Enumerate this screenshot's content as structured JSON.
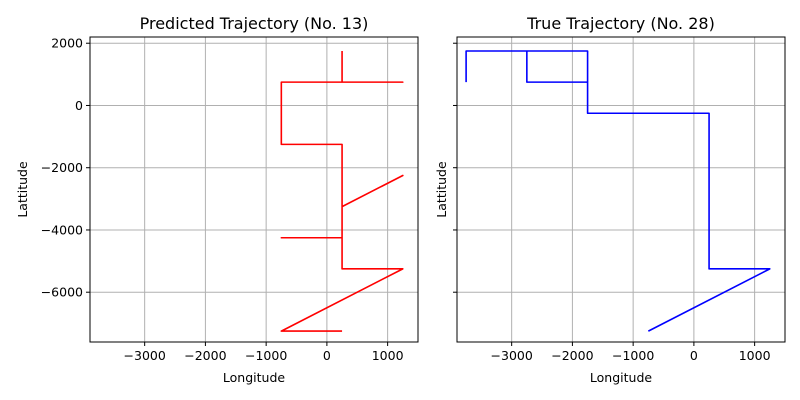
{
  "chart_data": [
    {
      "type": "line",
      "title": "Predicted Trajectory (No. 13)",
      "xlabel": "Longitude",
      "ylabel": "Lattitude",
      "xlim": [
        -3900,
        1500
      ],
      "ylim": [
        -7600,
        2200
      ],
      "xticks": [
        -3000,
        -2000,
        -1000,
        0,
        1000
      ],
      "xtick_labels": [
        "−3000",
        "−2000",
        "−1000",
        "0",
        "1000"
      ],
      "yticks": [
        2000,
        0,
        -2000,
        -4000,
        -6000
      ],
      "ytick_labels": [
        "2000",
        "0",
        "−2000",
        "−4000",
        "−6000"
      ],
      "grid": true,
      "color": "#ff0000",
      "series": [
        {
          "x": [
            250,
            250,
            1250,
            -750,
            -750,
            250,
            250,
            1250,
            250,
            250,
            -750,
            250,
            250,
            1250,
            -750,
            250
          ],
          "y": [
            1750,
            750,
            750,
            750,
            -1250,
            -1250,
            -3250,
            -2250,
            -3250,
            -4250,
            -4250,
            -4250,
            -5250,
            -5250,
            -7250,
            -7250
          ]
        }
      ]
    },
    {
      "type": "line",
      "title": "True Trajectory (No. 28)",
      "xlabel": "Longitude",
      "ylabel": "Lattitude",
      "xlim": [
        -3900,
        1500
      ],
      "ylim": [
        -7600,
        2200
      ],
      "xticks": [
        -3000,
        -2000,
        -1000,
        0,
        1000
      ],
      "xtick_labels": [
        "−3000",
        "−2000",
        "−1000",
        "0",
        "1000"
      ],
      "yticks": [
        2000,
        0,
        -2000,
        -4000,
        -6000
      ],
      "ytick_labels": [
        "2000",
        "0",
        "−2000",
        "−4000",
        "−6000"
      ],
      "grid": true,
      "color": "#0000ff",
      "series": [
        {
          "x": [
            -3750,
            -3750,
            -2750,
            -2750,
            -1750,
            -1750,
            -2750,
            -3750,
            -1750,
            -1750,
            250,
            250,
            1250,
            -750
          ],
          "y": [
            750,
            1750,
            1750,
            750,
            750,
            1750,
            1750,
            1750,
            1750,
            -250,
            -250,
            -5250,
            -5250,
            -7250
          ]
        }
      ]
    }
  ]
}
